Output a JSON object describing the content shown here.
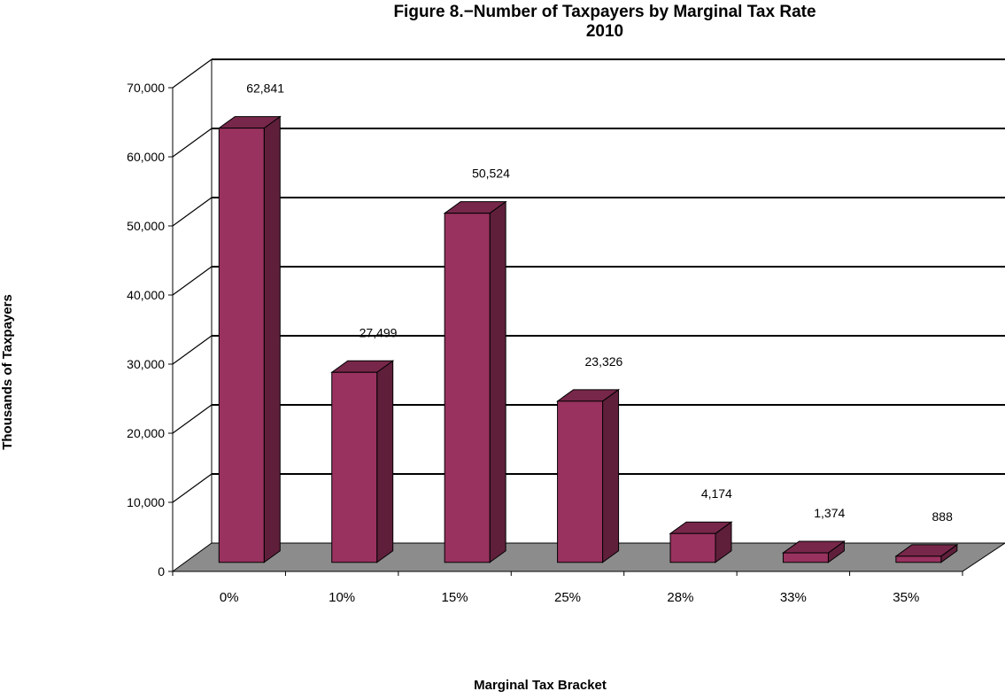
{
  "chart_data": {
    "type": "bar",
    "title": "Figure 8.−Number of Taxpayers by Marginal Tax Rate",
    "subtitle": "2010",
    "xlabel": "Marginal Tax Bracket",
    "ylabel": "Thousands of Taxpayers",
    "categories": [
      "0%",
      "10%",
      "15%",
      "25%",
      "28%",
      "33%",
      "35%"
    ],
    "values": [
      62841,
      27499,
      50524,
      23326,
      4174,
      1374,
      888
    ],
    "data_labels": [
      "62,841",
      "27,499",
      "50,524",
      "23,326",
      "4,174",
      "1,374",
      "888"
    ],
    "ylim": [
      0,
      70000
    ],
    "yticks": [
      0,
      10000,
      20000,
      30000,
      40000,
      50000,
      60000,
      70000
    ],
    "ytick_labels": [
      "0",
      "10,000",
      "20,000",
      "30,000",
      "40,000",
      "50,000",
      "60,000",
      "70,000"
    ],
    "grid": true,
    "legend": "none",
    "bar_color": "#99325F",
    "floor_color": "#8C8C8C"
  }
}
